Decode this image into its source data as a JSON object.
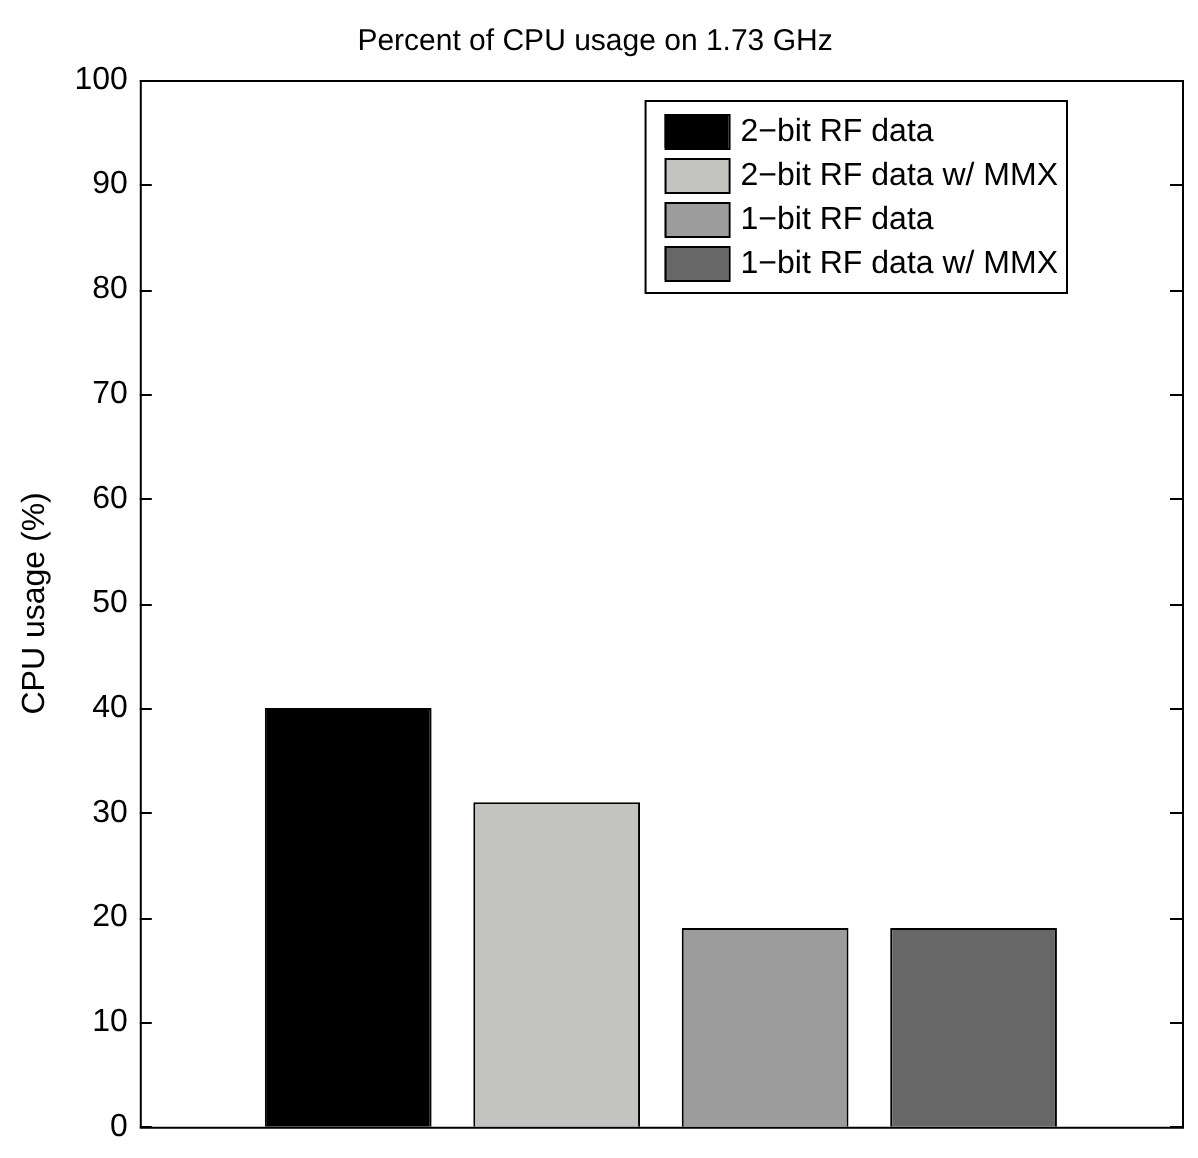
{
  "chart_data": {
    "type": "bar",
    "title": "Percent of CPU usage on 1.73 GHz",
    "ylabel": "CPU usage (%)",
    "categories": [
      null
    ],
    "series": [
      {
        "name": "2−bit RF data",
        "color": "#000000",
        "values": [
          40
        ]
      },
      {
        "name": "2−bit RF data w/ MMX",
        "color": "#c3c4bf",
        "values": [
          31
        ]
      },
      {
        "name": "1−bit RF data",
        "color": "#9c9c9c",
        "values": [
          19
        ]
      },
      {
        "name": "1−bit RF data w/ MMX",
        "color": "#676767",
        "values": [
          19
        ]
      }
    ],
    "ylim": [
      0,
      100
    ],
    "yticks": [
      0,
      10,
      20,
      30,
      40,
      50,
      60,
      70,
      80,
      90,
      100
    ],
    "grid": false,
    "legend": "top right"
  }
}
